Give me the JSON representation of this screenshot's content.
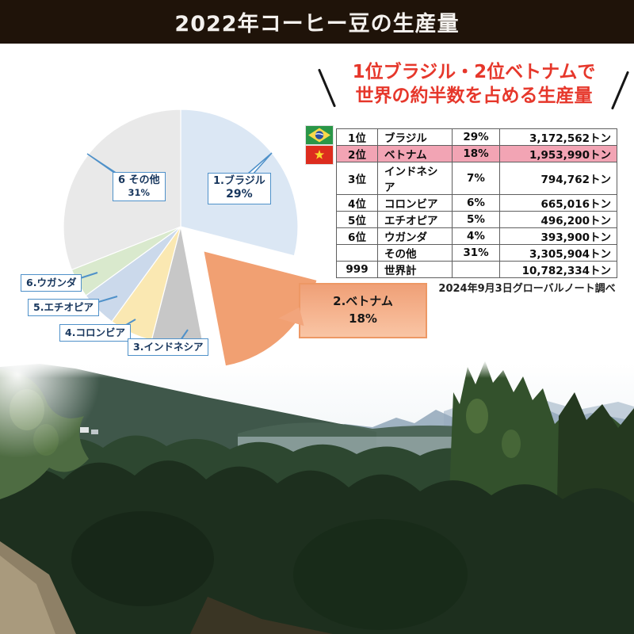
{
  "header": {
    "title": "2022年コーヒー豆の生産量"
  },
  "headline": {
    "line1": "1位ブラジル・2位ベトナムで",
    "line2": "世界の約半数を占める生産量",
    "color": "#e6372b"
  },
  "chart_data": {
    "type": "pie",
    "title": "2022年コーヒー豆の生産量",
    "start_angle_deg": 0,
    "direction": "clockwise",
    "legend_position": "callout-labels",
    "slices": [
      {
        "label": "1.ブラジル",
        "pct": 29,
        "pct_label": "29%",
        "color": "#dbe7f4",
        "explode": false
      },
      {
        "label": "2.ベトナム",
        "pct": 18,
        "pct_label": "18%",
        "color": "#f1a072",
        "explode": true
      },
      {
        "label": "3.インドネシア",
        "pct": 7,
        "pct_label": "7%",
        "color": "#c7c7c7",
        "explode": false
      },
      {
        "label": "4.コロンビア",
        "pct": 6,
        "pct_label": "6%",
        "color": "#fae8b2",
        "explode": false
      },
      {
        "label": "5.エチオピア",
        "pct": 5,
        "pct_label": "5%",
        "color": "#cbd9eb",
        "explode": false
      },
      {
        "label": "6.ウガンダ",
        "pct": 4,
        "pct_label": "4%",
        "color": "#d9e9cd",
        "explode": false
      },
      {
        "label": "6 その他",
        "pct": 31,
        "pct_label": "31%",
        "color": "#e9e9e9",
        "explode": false
      }
    ]
  },
  "callout": {
    "line1": "2.ベトナム",
    "line2": "18%"
  },
  "table": {
    "rows": [
      {
        "rank": "1位",
        "country": "ブラジル",
        "pct": "29%",
        "tons": "3,172,562トン",
        "flag": "brazil",
        "highlight": false
      },
      {
        "rank": "2位",
        "country": "ベトナム",
        "pct": "18%",
        "tons": "1,953,990トン",
        "flag": "vietnam",
        "highlight": true
      },
      {
        "rank": "3位",
        "country": "インドネシア",
        "pct": "7%",
        "tons": "794,762トン",
        "flag": "",
        "highlight": false
      },
      {
        "rank": "4位",
        "country": "コロンビア",
        "pct": "6%",
        "tons": "665,016トン",
        "flag": "",
        "highlight": false
      },
      {
        "rank": "5位",
        "country": "エチオピア",
        "pct": "5%",
        "tons": "496,200トン",
        "flag": "",
        "highlight": false
      },
      {
        "rank": "6位",
        "country": "ウガンダ",
        "pct": "4%",
        "tons": "393,900トン",
        "flag": "",
        "highlight": false
      },
      {
        "rank": "",
        "country": "その他",
        "pct": "31%",
        "tons": "3,305,904トン",
        "flag": "",
        "highlight": false
      },
      {
        "rank": "999",
        "country": "世界計",
        "pct": "",
        "tons": "10,782,334トン",
        "flag": "",
        "highlight": false
      }
    ]
  },
  "source": {
    "note": "2024年9月3日グローバルノート調べ"
  },
  "colors": {
    "header_bg": "#1f1309",
    "headline_red": "#e6372b",
    "highlight_row_pink": "#f2a4b4",
    "label_border_blue": "#4f91c9",
    "label_text_navy": "#17365d",
    "callout_orange": "#f1a072"
  }
}
